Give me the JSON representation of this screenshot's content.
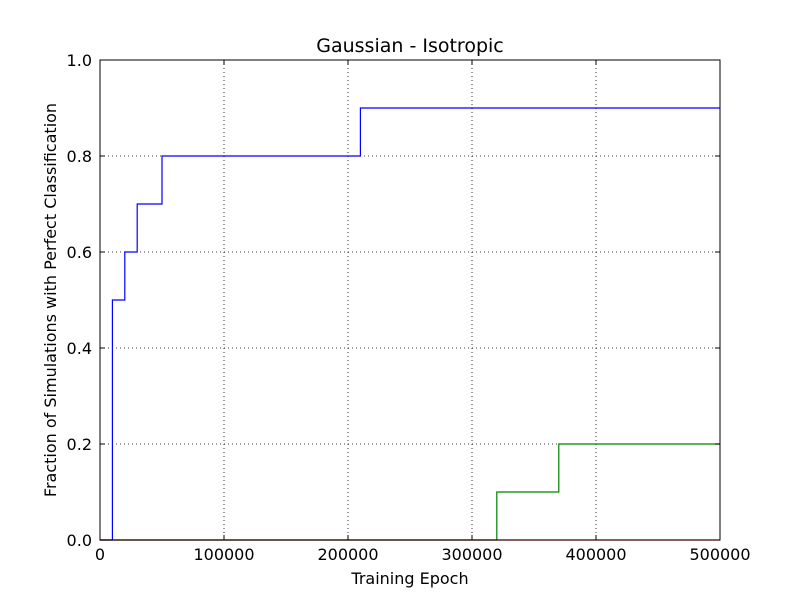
{
  "chart_data": {
    "type": "line",
    "step": true,
    "title": "Gaussian - Isotropic",
    "xlabel": "Training Epoch",
    "ylabel": "Fraction of Simulations with Perfect Classification",
    "xlim": [
      0,
      500000
    ],
    "ylim": [
      0.0,
      1.0
    ],
    "xticks": [
      0,
      100000,
      200000,
      300000,
      400000,
      500000
    ],
    "xtick_labels": [
      "0",
      "100000",
      "200000",
      "300000",
      "400000",
      "500000"
    ],
    "yticks": [
      0.0,
      0.2,
      0.4,
      0.6,
      0.8,
      1.0
    ],
    "ytick_labels": [
      "0.0",
      "0.2",
      "0.4",
      "0.6",
      "0.8",
      "1.0"
    ],
    "grid": true,
    "grid_style": "dotted",
    "series": [
      {
        "color": "#0000ff",
        "x": [
          0,
          10000,
          20000,
          30000,
          50000,
          210000,
          500000
        ],
        "y": [
          0.0,
          0.5,
          0.6,
          0.7,
          0.8,
          0.9,
          0.9
        ]
      },
      {
        "color": "#008000",
        "x": [
          0,
          320000,
          370000,
          500000
        ],
        "y": [
          0.0,
          0.1,
          0.2,
          0.2
        ]
      },
      {
        "color": "#ff0000",
        "x": [
          0,
          500000
        ],
        "y": [
          0.0,
          0.0
        ]
      }
    ]
  }
}
